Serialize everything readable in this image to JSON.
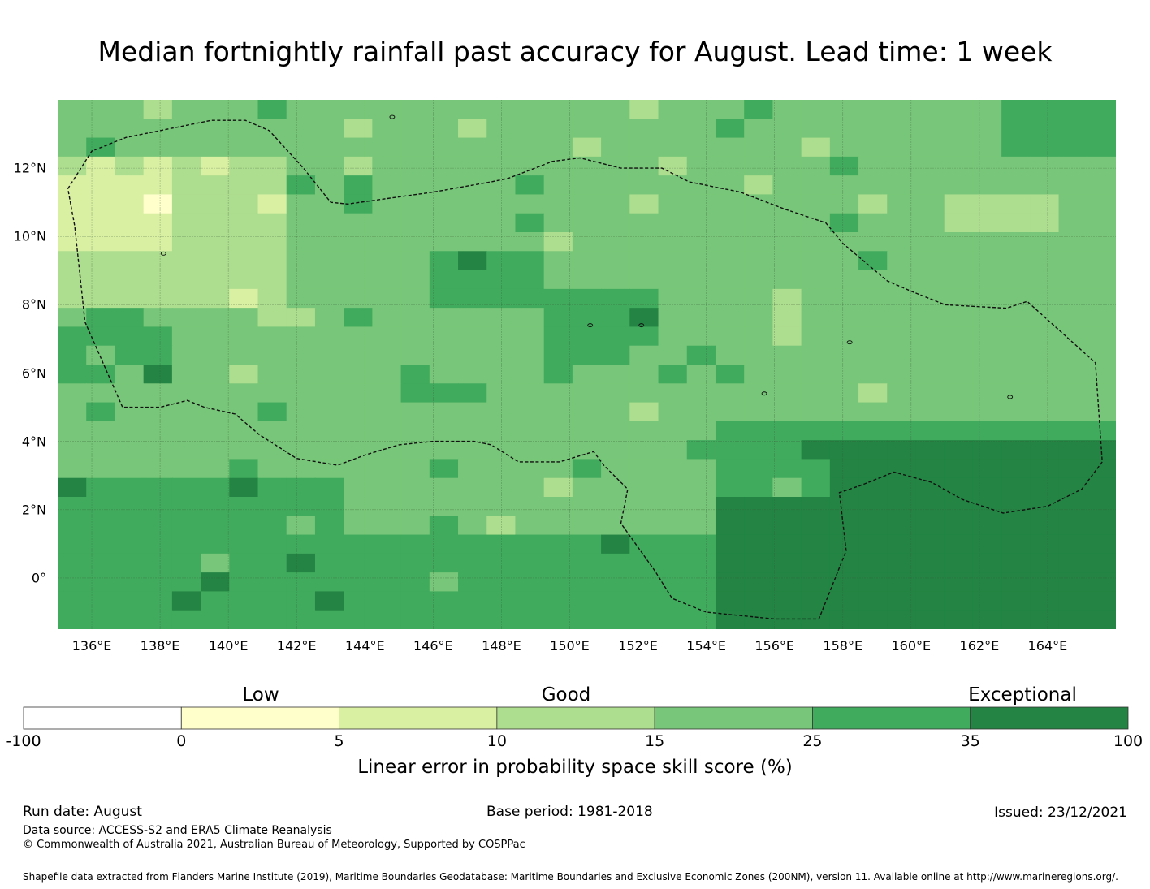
{
  "title": "Median fortnightly rainfall past accuracy for August. Lead time: 1 week",
  "map": {
    "latitude_labels": [
      "12°N",
      "10°N",
      "8°N",
      "6°N",
      "4°N",
      "2°N",
      "0°"
    ],
    "longitude_labels": [
      "136°E",
      "138°E",
      "140°E",
      "142°E",
      "144°E",
      "146°E",
      "148°E",
      "150°E",
      "152°E",
      "154°E",
      "156°E",
      "158°E",
      "160°E",
      "162°E",
      "164°E"
    ],
    "lon_range": [
      135.0,
      166.0
    ],
    "lat_range": [
      -1.5,
      14.0
    ],
    "grid_lines": true,
    "boundary": "dashed EEZ outline",
    "cell_colors": {
      "class0": "#ffffcc",
      "class1": "#d9f0a3",
      "class2": "#addd8e",
      "class3": "#78c679",
      "class4": "#41ab5d",
      "class5": "#238443"
    }
  },
  "legend": {
    "category_labels": [
      "Low",
      "Good",
      "Exceptional"
    ],
    "ticks": [
      "-100",
      "0",
      "5",
      "10",
      "15",
      "25",
      "35",
      "100"
    ],
    "colors": [
      "#ffffff",
      "#ffffcc",
      "#d9f0a3",
      "#addd8e",
      "#78c679",
      "#41ab5d",
      "#238443"
    ],
    "title": "Linear error in probability space skill score (%)"
  },
  "footer": {
    "run_date": "Run date: August",
    "base_period": "Base period: 1981-2018",
    "issued": "Issued: 23/12/2021",
    "data_source": "Data source: ACCESS-S2 and ERA5 Climate Reanalysis",
    "copyright": "© Commonwealth of Australia 2021, Australian Bureau of Meteorology, Supported by COSPPac",
    "shapefile": "Shapefile data extracted from Flanders Marine Institute (2019), Maritime Boundaries Geodatabase: Maritime Boundaries and Exclusive Economic Zones (200NM), version 11. Available online at http://www.marineregions.org/."
  }
}
